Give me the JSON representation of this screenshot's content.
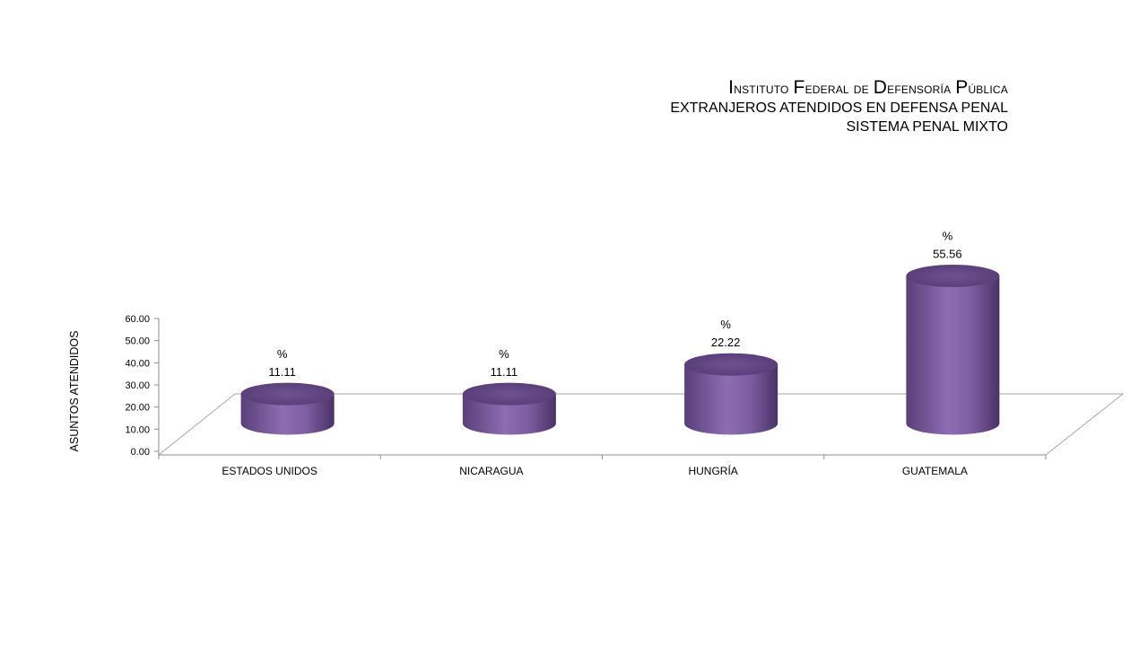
{
  "header": {
    "title": "Instituto Federal de Defensoría Pública",
    "subtitle1": "EXTRANJEROS ATENDIDOS EN DEFENSA PENAL",
    "subtitle2": "SISTEMA PENAL MIXTO"
  },
  "chart_data": {
    "type": "bar",
    "style": "3d-cylinder",
    "title": "Instituto Federal de Defensoría Pública",
    "subtitle": [
      "EXTRANJEROS ATENDIDOS EN DEFENSA PENAL",
      "SISTEMA PENAL MIXTO"
    ],
    "xlabel": "",
    "ylabel": "ASUNTOS ATENDIDOS",
    "categories": [
      "ESTADOS UNIDOS",
      "NICARAGUA",
      "HUNGRÍA",
      "GUATEMALA"
    ],
    "values": [
      11.11,
      11.11,
      22.22,
      55.56
    ],
    "data_label_prefix": "%",
    "ylim": [
      0,
      60
    ],
    "yticks": [
      "0.00",
      "10.00",
      "20.00",
      "30.00",
      "40.00",
      "50.00",
      "60.00"
    ],
    "grid": false,
    "legend": "none",
    "bar_color": "#8a6aac"
  }
}
